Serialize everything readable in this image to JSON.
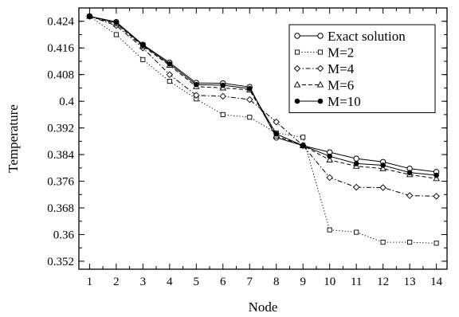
{
  "chart_data": {
    "type": "line",
    "xlabel": "Node",
    "ylabel": "Temperature",
    "xlim": [
      0.6,
      14.4
    ],
    "ylim": [
      0.3496,
      0.428
    ],
    "grid": false,
    "legend_position": "top-right",
    "x": [
      1,
      2,
      3,
      4,
      5,
      6,
      7,
      8,
      9,
      10,
      11,
      12,
      13,
      14
    ],
    "xticks": [
      "1",
      "2",
      "3",
      "4",
      "5",
      "6",
      "7",
      "8",
      "9",
      "10",
      "11",
      "12",
      "13",
      "14"
    ],
    "yticks": [
      {
        "value": 0.352,
        "label": "0.352"
      },
      {
        "value": 0.36,
        "label": "0.36"
      },
      {
        "value": 0.368,
        "label": "0.368"
      },
      {
        "value": 0.376,
        "label": "0.376"
      },
      {
        "value": 0.384,
        "label": "0.384"
      },
      {
        "value": 0.392,
        "label": "0.392"
      },
      {
        "value": 0.4,
        "label": "0.4"
      },
      {
        "value": 0.408,
        "label": "0.408"
      },
      {
        "value": 0.416,
        "label": "0.416"
      },
      {
        "value": 0.424,
        "label": "0.424"
      }
    ],
    "series": [
      {
        "name": "Exact solution",
        "color": "#000000",
        "dash": "solid",
        "marker": "circle-open",
        "values": [
          0.4255,
          0.4238,
          0.417,
          0.4116,
          0.4055,
          0.4054,
          0.4043,
          0.3891,
          0.3867,
          0.3847,
          0.3828,
          0.3818,
          0.3798,
          0.3788
        ]
      },
      {
        "name": "M=2",
        "color": "#000000",
        "dash": "dotted",
        "marker": "square-open",
        "values": [
          0.4255,
          0.42,
          0.4125,
          0.406,
          0.4007,
          0.396,
          0.3952,
          0.3905,
          0.3892,
          0.3614,
          0.3607,
          0.3577,
          0.3577,
          0.3574
        ]
      },
      {
        "name": "M=4",
        "color": "#000000",
        "dash": "dashdot",
        "marker": "diamond-open",
        "values": [
          0.4255,
          0.4227,
          0.416,
          0.408,
          0.4018,
          0.4015,
          0.4005,
          0.3938,
          0.3867,
          0.3771,
          0.3742,
          0.3741,
          0.3717,
          0.3715
        ]
      },
      {
        "name": "M=6",
        "color": "#000000",
        "dash": "dashed",
        "marker": "triangle-open",
        "values": [
          0.4255,
          0.4232,
          0.4165,
          0.4108,
          0.4044,
          0.404,
          0.4034,
          0.3896,
          0.3867,
          0.3824,
          0.3805,
          0.3798,
          0.378,
          0.3768
        ]
      },
      {
        "name": "M=10",
        "color": "#000000",
        "dash": "solid",
        "marker": "circle-filled",
        "values": [
          0.4255,
          0.4236,
          0.4168,
          0.4112,
          0.405,
          0.4048,
          0.4038,
          0.3902,
          0.3867,
          0.3835,
          0.3813,
          0.3808,
          0.3786,
          0.3778
        ]
      }
    ]
  }
}
